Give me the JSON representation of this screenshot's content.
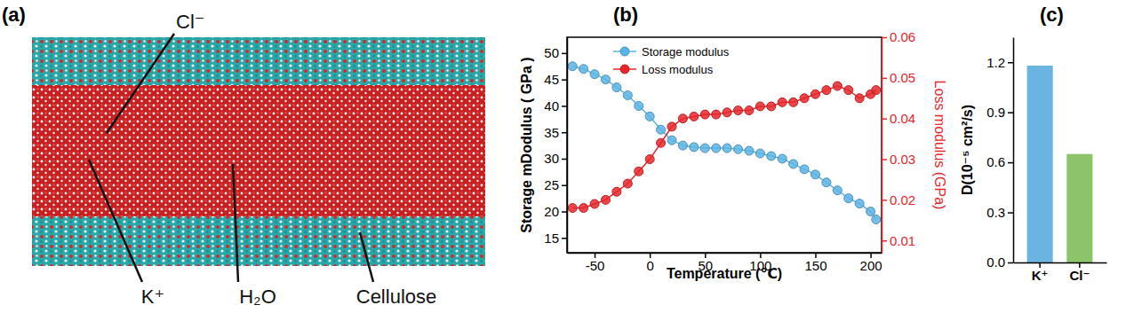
{
  "image": {
    "title": "(a)",
    "labels": [
      "Cl⁻",
      "K⁺",
      "H₂O",
      "Cellulose"
    ]
  },
  "chart_data": [
    {
      "type": "line",
      "title": "(b)",
      "x_label": "Temperature (℃)",
      "y_label": "Storage mDodulus ( GPa )",
      "y2_label": "Loss modulus (GPa)",
      "x": [
        -70,
        -60,
        -50,
        -40,
        -30,
        -20,
        -10,
        0,
        10,
        20,
        30,
        40,
        50,
        60,
        70,
        80,
        90,
        100,
        110,
        120,
        130,
        140,
        150,
        160,
        170,
        180,
        190,
        200,
        205
      ],
      "series": [
        {
          "name": "Storage modulus",
          "color": "#5ab4e5",
          "marker": "o",
          "line_style": "solid",
          "values": [
            47.5,
            47,
            46,
            45,
            43.5,
            42,
            40,
            38,
            35.5,
            33.5,
            32.5,
            32.2,
            32,
            32,
            32,
            31.8,
            31.5,
            31,
            30.5,
            30,
            29,
            28,
            27,
            25.5,
            24,
            22.5,
            21.5,
            20,
            18.5
          ]
        },
        {
          "name": "Loss modulus",
          "color": "#e8262a",
          "marker": "o",
          "line_style": "solid",
          "axis": "y2",
          "values": [
            0.018,
            0.018,
            0.019,
            0.02,
            0.022,
            0.024,
            0.027,
            0.03,
            0.034,
            0.038,
            0.04,
            0.0405,
            0.041,
            0.041,
            0.0415,
            0.042,
            0.042,
            0.043,
            0.043,
            0.044,
            0.044,
            0.045,
            0.046,
            0.047,
            0.048,
            0.047,
            0.045,
            0.046,
            0.047
          ]
        }
      ],
      "xlim": [
        -75,
        210
      ],
      "xticks": [
        -50,
        0,
        50,
        100,
        150,
        200
      ],
      "ylim": [
        12.2,
        53
      ],
      "yticks": [
        15,
        20,
        25,
        30,
        35,
        40,
        45,
        50
      ],
      "y2lim": [
        0.007,
        0.06
      ],
      "y2ticks": [
        0.01,
        0.02,
        0.03,
        0.04,
        0.05,
        0.06
      ],
      "legend": "top"
    },
    {
      "type": "bar",
      "title": "(c)",
      "y_label": "D(10⁻⁵ cm²/s)",
      "categories": [
        "K⁺",
        "Cl⁻"
      ],
      "values": [
        1.18,
        0.65
      ],
      "colors": [
        "#6bb3e0",
        "#8cc46a"
      ],
      "ylim": [
        0,
        1.35
      ],
      "yticks": [
        {
          "value": 0,
          "label": "0.0"
        },
        0.3,
        0.6,
        0.9,
        1.2
      ]
    }
  ]
}
